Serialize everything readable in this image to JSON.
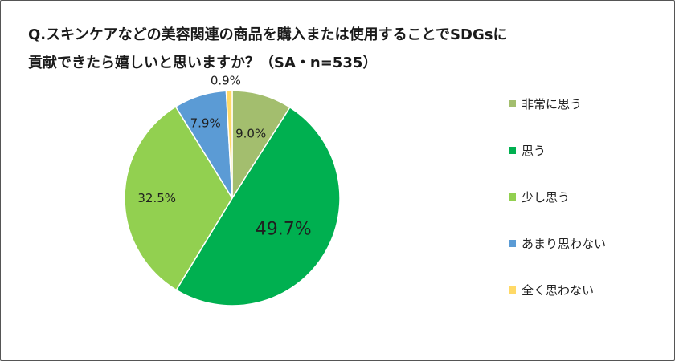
{
  "title_lines": [
    "Q.スキンケアなどの美容関連の商品を購入または使用することでSDGsに",
    "貢献できたら嬉しいと思いますか？（SA・n=535）"
  ],
  "chart_data": {
    "type": "pie",
    "title": "Q.スキンケアなどの美容関連の商品を購入または使用することでSDGsに貢献できたら嬉しいと思いますか？（SA・n=535）",
    "unit": "%",
    "slices": [
      {
        "label": "非常に思う",
        "value": 9.0,
        "display": "9.0%",
        "color": "#a3be6e"
      },
      {
        "label": "思う",
        "value": 49.7,
        "display": "49.7%",
        "color": "#00b050"
      },
      {
        "label": "少し思う",
        "value": 32.5,
        "display": "32.5%",
        "color": "#92d050"
      },
      {
        "label": "あまり思わない",
        "value": 7.9,
        "display": "7.9%",
        "color": "#5b9bd5"
      },
      {
        "label": "全く思わない",
        "value": 0.9,
        "display": "0.9%",
        "color": "#ffd966"
      }
    ],
    "legend_position": "right"
  }
}
